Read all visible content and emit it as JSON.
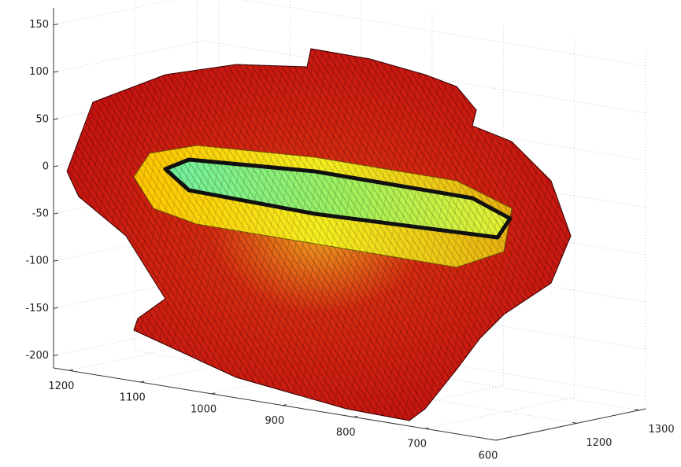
{
  "chart_data": {
    "type": "surface3d",
    "xlim": [
      1222,
      600
    ],
    "xticks": [
      1200,
      1100,
      1000,
      900,
      800,
      700,
      600
    ],
    "ylim": [
      1070,
      1310
    ],
    "yticks": [
      1200,
      1300
    ],
    "zlim": [
      -213,
      168
    ],
    "zticks": [
      150,
      100,
      50,
      0,
      -50,
      -100,
      -150,
      -200
    ],
    "grid": true
  }
}
